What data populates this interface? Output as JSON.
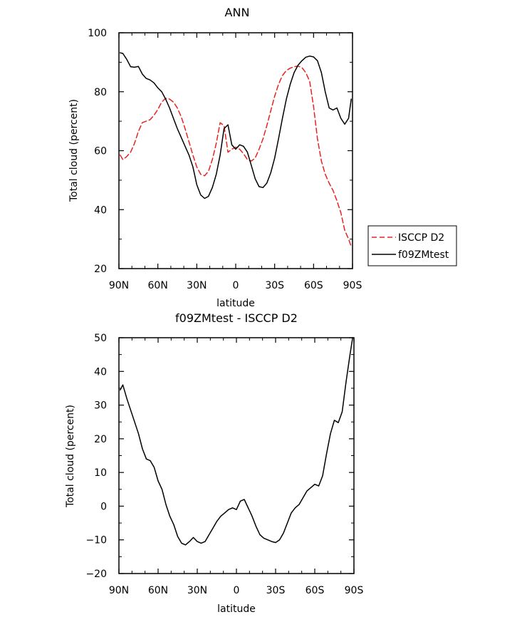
{
  "chart_data": [
    {
      "type": "line",
      "title": "ANN",
      "xlabel": "latitude",
      "ylabel": "Total cloud (percent)",
      "xlim": [
        90,
        -90
      ],
      "ylim": [
        20,
        100
      ],
      "xticks": [
        90,
        60,
        30,
        0,
        -30,
        -60,
        -90
      ],
      "xtick_labels": [
        "90N",
        "60N",
        "30N",
        "0",
        "30S",
        "60S",
        "90S"
      ],
      "yticks": [
        20,
        40,
        60,
        80,
        100
      ],
      "ytick_labels": [
        "20",
        "40",
        "60",
        "80",
        "100"
      ],
      "legend_position": "right",
      "series": [
        {
          "name": "ISCCP D2",
          "color": "#e8231e",
          "dash": "dashed",
          "x": [
            89,
            87,
            84,
            81,
            78,
            75,
            72,
            69,
            66,
            63,
            60,
            57,
            54,
            51,
            48,
            45,
            42,
            39,
            36,
            33,
            30,
            27,
            24,
            21,
            18,
            15,
            12,
            9,
            6,
            3,
            0,
            -3,
            -6,
            -9,
            -12,
            -15,
            -18,
            -21,
            -24,
            -27,
            -30,
            -33,
            -36,
            -39,
            -42,
            -45,
            -48,
            -51,
            -54,
            -57,
            -60,
            -63,
            -66,
            -69,
            -72,
            -75,
            -78,
            -81,
            -84,
            -87,
            -89
          ],
          "y": [
            58.5,
            57.0,
            58.0,
            59.5,
            62.5,
            66.5,
            69.5,
            70.0,
            70.5,
            72.0,
            74.0,
            76.5,
            77.8,
            77.5,
            76.5,
            74.5,
            71.5,
            67.5,
            63.0,
            58.5,
            54.5,
            52.0,
            51.5,
            53.0,
            57.0,
            62.5,
            69.5,
            68.5,
            59.5,
            60.5,
            61.2,
            60.5,
            59.0,
            57.0,
            56.5,
            57.5,
            60.5,
            64.0,
            68.5,
            73.5,
            78.5,
            82.5,
            85.5,
            87.2,
            88.0,
            88.5,
            88.7,
            88.2,
            86.5,
            83.5,
            75.0,
            64.0,
            56.5,
            52.0,
            49.0,
            46.5,
            43.0,
            39.0,
            33.0,
            30.0,
            27.5
          ]
        },
        {
          "name": "f09ZMtest",
          "color": "#000000",
          "dash": "solid",
          "x": [
            89,
            87,
            84,
            81,
            78,
            75,
            72,
            69,
            66,
            63,
            60,
            57,
            54,
            51,
            48,
            45,
            42,
            39,
            36,
            33,
            30,
            27,
            24,
            21,
            18,
            15,
            12,
            9,
            6,
            3,
            0,
            -3,
            -6,
            -9,
            -12,
            -15,
            -18,
            -21,
            -24,
            -27,
            -30,
            -33,
            -36,
            -39,
            -42,
            -45,
            -48,
            -51,
            -54,
            -57,
            -60,
            -63,
            -66,
            -69,
            -72,
            -75,
            -78,
            -81,
            -84,
            -87,
            -89
          ],
          "y": [
            93.2,
            93.0,
            91.0,
            88.5,
            88.3,
            88.6,
            86.0,
            84.5,
            84.0,
            83.0,
            81.3,
            80.0,
            77.5,
            74.5,
            71.0,
            67.5,
            64.5,
            61.5,
            58.5,
            54.5,
            48.5,
            45.0,
            43.8,
            44.5,
            47.5,
            52.0,
            58.5,
            67.5,
            68.8,
            62.0,
            60.5,
            62.0,
            61.5,
            59.5,
            55.0,
            50.5,
            47.8,
            47.5,
            49.0,
            52.5,
            57.5,
            64.0,
            71.0,
            77.5,
            82.5,
            86.5,
            89.0,
            90.5,
            91.7,
            92.1,
            91.8,
            90.5,
            86.5,
            80.0,
            74.5,
            73.8,
            74.5,
            71.0,
            69.0,
            71.0,
            77.5
          ]
        }
      ]
    },
    {
      "type": "line",
      "title": "f09ZMtest - ISCCP D2",
      "xlabel": "latitude",
      "ylabel": "Total cloud (percent)",
      "xlim": [
        90,
        -90
      ],
      "ylim": [
        -20,
        50
      ],
      "xticks": [
        90,
        60,
        30,
        0,
        -30,
        -60,
        -90
      ],
      "xtick_labels": [
        "90N",
        "60N",
        "30N",
        "0",
        "30S",
        "60S",
        "90S"
      ],
      "yticks": [
        -20,
        -10,
        0,
        10,
        20,
        30,
        40,
        50
      ],
      "ytick_labels": [
        "−20",
        "−10",
        "0",
        "10",
        "20",
        "30",
        "40",
        "50"
      ],
      "series": [
        {
          "color": "#000000",
          "dash": "solid",
          "x": [
            89,
            87,
            84,
            81,
            78,
            75,
            72,
            69,
            66,
            63,
            60,
            57,
            54,
            51,
            48,
            45,
            42,
            39,
            36,
            33,
            30,
            27,
            24,
            21,
            18,
            15,
            12,
            9,
            6,
            3,
            0,
            -3,
            -6,
            -9,
            -12,
            -15,
            -18,
            -21,
            -24,
            -27,
            -30,
            -33,
            -36,
            -39,
            -42,
            -45,
            -48,
            -51,
            -54,
            -57,
            -60,
            -63,
            -66,
            -69,
            -72,
            -75,
            -78,
            -81,
            -84,
            -87,
            -89
          ],
          "y": [
            34.5,
            36.0,
            32.0,
            28.5,
            25.0,
            21.5,
            17.0,
            14.0,
            13.5,
            11.5,
            7.5,
            5.0,
            0.5,
            -3.0,
            -5.5,
            -9.0,
            -11.0,
            -11.5,
            -10.5,
            -9.3,
            -10.5,
            -11.0,
            -10.5,
            -8.5,
            -6.5,
            -4.5,
            -3.0,
            -2.0,
            -1.0,
            -0.5,
            -1.0,
            1.5,
            2.0,
            -0.5,
            -3.0,
            -6.0,
            -8.5,
            -9.5,
            -10.0,
            -10.5,
            -10.8,
            -10.0,
            -8.0,
            -5.0,
            -2.0,
            -0.5,
            0.5,
            2.5,
            4.5,
            5.5,
            6.5,
            6.0,
            9.0,
            15.5,
            21.5,
            25.5,
            24.8,
            28.0,
            37.0,
            45.0,
            50.0
          ]
        }
      ]
    }
  ]
}
